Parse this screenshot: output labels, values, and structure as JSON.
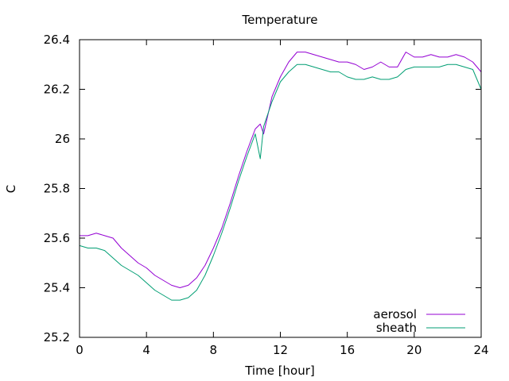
{
  "chart_data": {
    "type": "line",
    "title": "Temperature",
    "xlabel": "Time [hour]",
    "ylabel": "C",
    "xlim": [
      0,
      24
    ],
    "ylim": [
      25.2,
      26.4
    ],
    "xticks": [
      0,
      4,
      8,
      12,
      16,
      20,
      24
    ],
    "xtick_labels": [
      "0",
      "4",
      "8",
      "12",
      "16",
      "20",
      "24"
    ],
    "yticks": [
      25.2,
      25.4,
      25.6,
      25.8,
      26.0,
      26.2,
      26.4
    ],
    "ytick_labels": [
      "25.2",
      "25.4",
      "25.6",
      "25.8",
      "26",
      "26.2",
      "26.4"
    ],
    "grid": false,
    "legend_position": "bottom-right",
    "series": [
      {
        "name": "aerosol",
        "color": "#9400d3",
        "x": [
          0,
          0.5,
          1,
          1.5,
          2,
          2.5,
          3,
          3.5,
          4,
          4.5,
          5,
          5.5,
          6,
          6.5,
          7,
          7.5,
          8,
          8.5,
          9,
          9.5,
          10,
          10.5,
          10.8,
          11,
          11.5,
          12,
          12.5,
          13,
          13.5,
          14,
          14.5,
          15,
          15.5,
          16,
          16.5,
          17,
          17.5,
          18,
          18.5,
          19,
          19.5,
          20,
          20.5,
          21,
          21.5,
          22,
          22.5,
          23,
          23.5,
          24
        ],
        "y": [
          25.61,
          25.61,
          25.62,
          25.61,
          25.6,
          25.56,
          25.53,
          25.5,
          25.48,
          25.45,
          25.43,
          25.41,
          25.4,
          25.41,
          25.44,
          25.49,
          25.56,
          25.64,
          25.74,
          25.85,
          25.95,
          26.04,
          26.06,
          26.02,
          26.17,
          26.25,
          26.31,
          26.35,
          26.35,
          26.34,
          26.33,
          26.32,
          26.31,
          26.31,
          26.3,
          26.28,
          26.29,
          26.31,
          26.29,
          26.29,
          26.35,
          26.33,
          26.33,
          26.34,
          26.33,
          26.33,
          26.34,
          26.33,
          26.31,
          26.27
        ]
      },
      {
        "name": "sheath",
        "color": "#009e73",
        "x": [
          0,
          0.5,
          1,
          1.5,
          2,
          2.5,
          3,
          3.5,
          4,
          4.5,
          5,
          5.5,
          6,
          6.5,
          7,
          7.5,
          8,
          8.5,
          9,
          9.5,
          10,
          10.5,
          10.8,
          11,
          11.5,
          12,
          12.5,
          13,
          13.5,
          14,
          14.5,
          15,
          15.5,
          16,
          16.5,
          17,
          17.5,
          18,
          18.5,
          19,
          19.5,
          20,
          20.5,
          21,
          21.5,
          22,
          22.5,
          23,
          23.5,
          24
        ],
        "y": [
          25.57,
          25.56,
          25.56,
          25.55,
          25.52,
          25.49,
          25.47,
          25.45,
          25.42,
          25.39,
          25.37,
          25.35,
          25.35,
          25.36,
          25.39,
          25.45,
          25.53,
          25.62,
          25.72,
          25.83,
          25.93,
          26.02,
          25.92,
          26.05,
          26.15,
          26.23,
          26.27,
          26.3,
          26.3,
          26.29,
          26.28,
          26.27,
          26.27,
          26.25,
          26.24,
          26.24,
          26.25,
          26.24,
          26.24,
          26.25,
          26.28,
          26.29,
          26.29,
          26.29,
          26.29,
          26.3,
          26.3,
          26.29,
          26.28,
          26.2
        ]
      }
    ]
  }
}
